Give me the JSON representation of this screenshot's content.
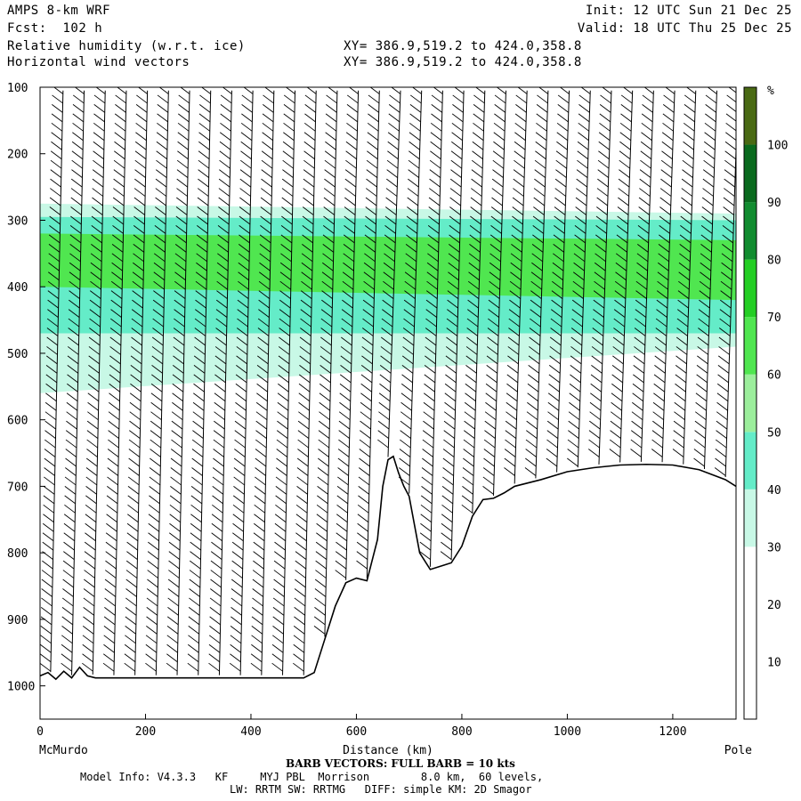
{
  "header": {
    "model": "AMPS 8-km WRF",
    "fcst": "Fcst:  102 h",
    "init": "Init: 12 UTC Sun 21 Dec 25",
    "valid": "Valid: 18 UTC Thu 25 Dec 25",
    "field1": "Relative humidity (w.r.t. ice)",
    "field2": "Horizontal wind vectors",
    "xy1": "XY= 386.9,519.2 to 424.0,358.8",
    "xy2": "XY= 386.9,519.2 to 424.0,358.8"
  },
  "footer": {
    "left_endpoint": "McMurdo",
    "right_endpoint": "Pole",
    "barb_note": "BARB VECTORS:  FULL BARB = 10 kts",
    "model_info_1": "Model Info: V4.3.3   KF     MYJ PBL  Morrison        8.0 km,  60 levels,",
    "model_info_2": "LW: RRTM SW: RRTMG   DIFF: simple KM: 2D Smagor"
  },
  "chart_data": {
    "type": "heatmap",
    "title": "Relative humidity (w.r.t. ice)",
    "xlabel": "Distance (km)",
    "ylabel": "",
    "xlim": [
      0,
      1320
    ],
    "ylim": [
      1050,
      100
    ],
    "x_ticks": [
      0,
      200,
      400,
      600,
      800,
      1000,
      1200
    ],
    "y_ticks": [
      100,
      200,
      300,
      400,
      500,
      600,
      700,
      800,
      900,
      1000
    ],
    "colorbar": {
      "unit": "%",
      "levels": [
        10,
        20,
        30,
        40,
        50,
        60,
        70,
        80,
        90,
        100
      ],
      "colors": [
        "#ffffff",
        "#ffffff",
        "#ffffff",
        "#c8f8e6",
        "#64ecc8",
        "#9cee9c",
        "#50e650",
        "#24ce24",
        "#128c30",
        "#0a6a1e",
        "#4a6a14"
      ]
    },
    "terrain_profile": {
      "x_km": [
        0,
        15,
        30,
        45,
        60,
        75,
        90,
        105,
        120,
        200,
        300,
        400,
        500,
        520,
        540,
        560,
        580,
        600,
        620,
        640,
        650,
        660,
        670,
        680,
        690,
        700,
        720,
        740,
        760,
        780,
        800,
        820,
        840,
        860,
        880,
        900,
        950,
        1000,
        1050,
        1100,
        1150,
        1200,
        1250,
        1300,
        1320
      ],
      "p_hpa": [
        985,
        980,
        990,
        978,
        988,
        972,
        985,
        988,
        988,
        988,
        988,
        988,
        988,
        980,
        930,
        880,
        845,
        838,
        842,
        780,
        700,
        660,
        655,
        680,
        700,
        715,
        800,
        825,
        820,
        815,
        790,
        745,
        720,
        718,
        710,
        700,
        690,
        678,
        672,
        668,
        667,
        668,
        675,
        690,
        700
      ]
    },
    "rh_layers": [
      {
        "x_km": [
          0,
          1320
        ],
        "p_top": [
          275,
          290
        ],
        "p_bot": [
          560,
          490
        ],
        "value": 35
      },
      {
        "x_km": [
          0,
          1320
        ],
        "p_top": [
          295,
          300
        ],
        "p_bot": [
          470,
          470
        ],
        "value": 45
      },
      {
        "x_km": [
          0,
          1320
        ],
        "p_top": [
          320,
          330
        ],
        "p_bot": [
          400,
          420
        ],
        "value": 60
      }
    ],
    "wind_barb_columns_km": [
      20,
      60,
      100,
      140,
      180,
      220,
      260,
      300,
      340,
      380,
      420,
      460,
      500,
      540,
      580,
      620,
      660,
      700,
      740,
      780,
      820,
      860,
      900,
      940,
      980,
      1020,
      1060,
      1100,
      1140,
      1180,
      1220,
      1260,
      1300
    ],
    "wind_barb_spacing_hpa": 14
  }
}
